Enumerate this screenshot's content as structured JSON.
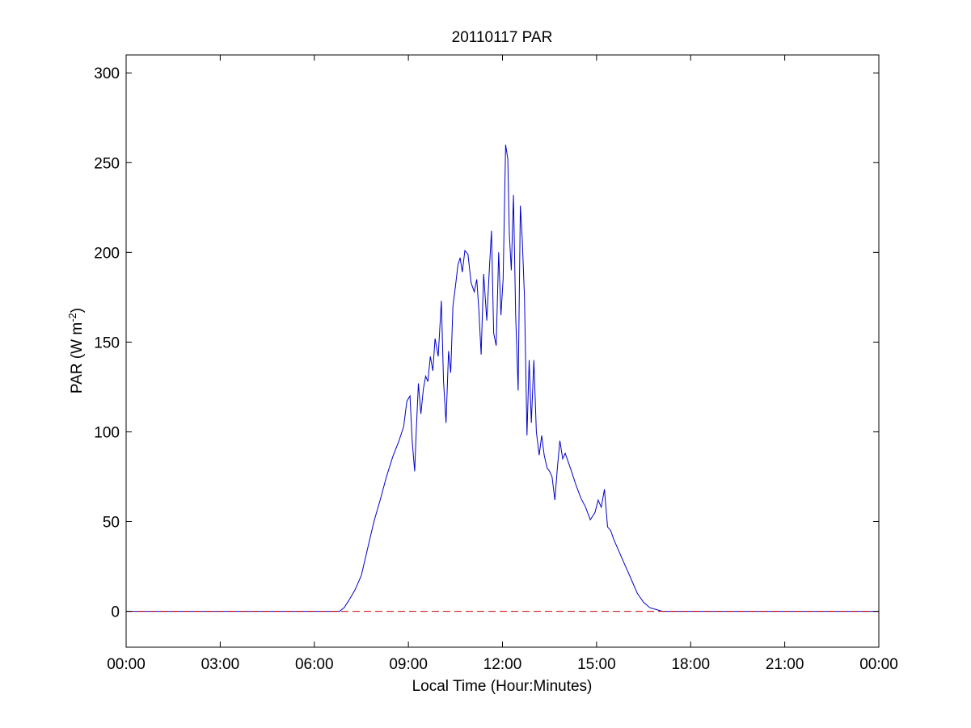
{
  "chart_data": {
    "type": "line",
    "title": "20110117 PAR",
    "xlabel": "Local Time (Hour:Minutes)",
    "ylabel": {
      "prefix": "PAR (W m",
      "sup": "-2",
      "suffix": ")"
    },
    "xlim": [
      0,
      24
    ],
    "ylim": [
      -20,
      310
    ],
    "x_unit": "hours",
    "xticks": [
      0,
      3,
      6,
      9,
      12,
      15,
      18,
      21,
      24
    ],
    "xtick_labels": [
      "00:00",
      "03:00",
      "06:00",
      "09:00",
      "12:00",
      "15:00",
      "18:00",
      "21:00",
      "00:00"
    ],
    "yticks": [
      0,
      50,
      100,
      150,
      200,
      250,
      300
    ],
    "ytick_labels": [
      "0",
      "50",
      "100",
      "150",
      "200",
      "250",
      "300"
    ],
    "grid": false,
    "series": [
      {
        "style": "solid",
        "color": "#0000cc",
        "x": [
          0,
          6.8,
          6.95,
          7.1,
          7.3,
          7.5,
          7.7,
          7.9,
          8.1,
          8.3,
          8.5,
          8.7,
          8.85,
          8.95,
          9.05,
          9.12,
          9.2,
          9.25,
          9.32,
          9.4,
          9.48,
          9.55,
          9.62,
          9.7,
          9.78,
          9.85,
          9.95,
          10.05,
          10.12,
          10.2,
          10.28,
          10.35,
          10.42,
          10.5,
          10.58,
          10.65,
          10.72,
          10.8,
          10.9,
          11.0,
          11.1,
          11.18,
          11.25,
          11.32,
          11.4,
          11.5,
          11.58,
          11.65,
          11.72,
          11.8,
          11.88,
          11.95,
          12.02,
          12.1,
          12.17,
          12.22,
          12.28,
          12.35,
          12.42,
          12.5,
          12.57,
          12.63,
          12.7,
          12.78,
          12.85,
          12.92,
          13.0,
          13.08,
          13.17,
          13.25,
          13.33,
          13.42,
          13.5,
          13.58,
          13.67,
          13.75,
          13.83,
          13.92,
          14.0,
          14.1,
          14.2,
          14.35,
          14.5,
          14.65,
          14.8,
          14.95,
          15.05,
          15.15,
          15.25,
          15.35,
          15.45,
          15.55,
          15.7,
          15.85,
          16.0,
          16.15,
          16.3,
          16.5,
          16.7,
          16.9,
          17.1,
          17.3,
          17.5,
          17.7,
          18.0,
          24
        ],
        "y": [
          0,
          0,
          2,
          6,
          12,
          20,
          35,
          50,
          62,
          75,
          86,
          95,
          103,
          117,
          120,
          95,
          78,
          100,
          127,
          110,
          124,
          131,
          128,
          142,
          134,
          152,
          142,
          173,
          128,
          105,
          145,
          133,
          170,
          181,
          193,
          197,
          189,
          201,
          199,
          183,
          178,
          185,
          167,
          143,
          188,
          162,
          190,
          212,
          155,
          148,
          200,
          165,
          185,
          260,
          252,
          210,
          190,
          232,
          165,
          123,
          226,
          208,
          175,
          98,
          140,
          105,
          140,
          100,
          87,
          98,
          87,
          80,
          78,
          75,
          62,
          80,
          95,
          85,
          88,
          83,
          78,
          70,
          63,
          58,
          51,
          55,
          62,
          58,
          68,
          47,
          45,
          40,
          34,
          28,
          22,
          16,
          10,
          5,
          2,
          1,
          0,
          0,
          0,
          0,
          0,
          0
        ]
      },
      {
        "style": "dashed",
        "color": "#cc0000",
        "x": [
          0,
          24
        ],
        "y": [
          0,
          0
        ]
      }
    ]
  }
}
